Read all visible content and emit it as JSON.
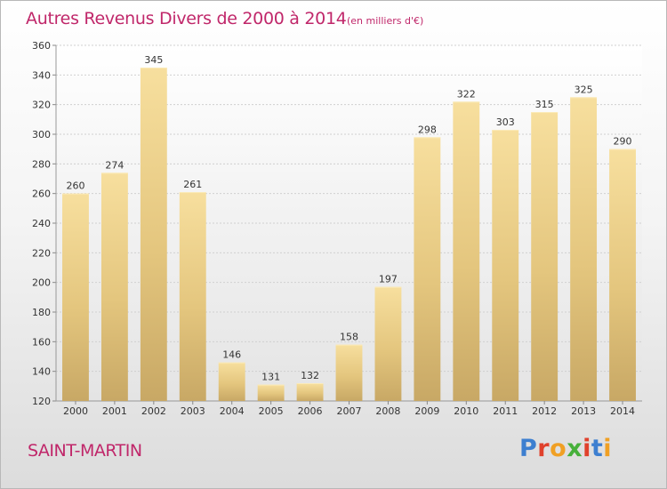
{
  "header": {
    "title": "Autres Revenus Divers de 2000 à 2014",
    "subtitle": "(en milliers d'€)"
  },
  "footer": {
    "location": "SAINT-MARTIN",
    "logo_letters": [
      "P",
      "r",
      "o",
      "x",
      "i",
      "t",
      "i"
    ],
    "logo_colors": [
      "#3d7fd0",
      "#e0412c",
      "#f0a024",
      "#46b03a",
      "#e0412c",
      "#3d7fd0",
      "#f0a024"
    ]
  },
  "chart_data": {
    "type": "bar",
    "title": "Autres Revenus Divers de 2000 à 2014",
    "subtitle": "(en milliers d'€)",
    "categories": [
      "2000",
      "2001",
      "2002",
      "2003",
      "2004",
      "2005",
      "2006",
      "2007",
      "2008",
      "2009",
      "2010",
      "2011",
      "2012",
      "2013",
      "2014"
    ],
    "values": [
      260,
      274,
      345,
      261,
      146,
      131,
      132,
      158,
      197,
      298,
      322,
      303,
      315,
      325,
      290
    ],
    "ylim": [
      120,
      360
    ],
    "yticks": [
      120,
      140,
      160,
      180,
      200,
      220,
      240,
      260,
      280,
      300,
      320,
      340,
      360
    ],
    "grid": true,
    "bar_color": "#e8c877"
  }
}
